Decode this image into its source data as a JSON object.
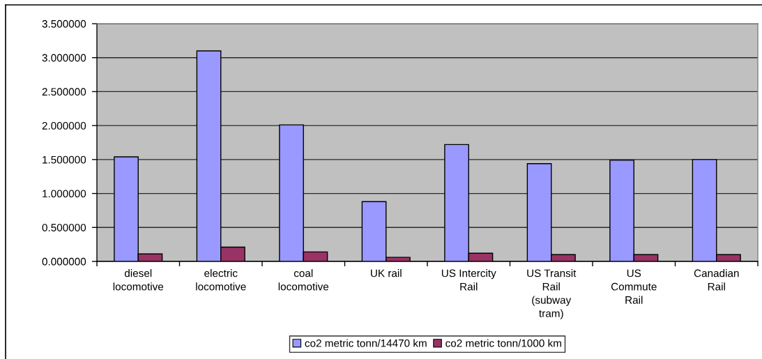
{
  "chart_data": {
    "type": "bar",
    "categories": [
      "diesel\nlocomotive",
      "electric\nlocomotive",
      "coal\nlocomotive",
      "UK rail",
      "US Intercity\nRail",
      "US Transit\nRail\n(subway\ntram)",
      "US\nCommute\nRail",
      "Canadian\nRail"
    ],
    "series": [
      {
        "name": "co2 metric tonn/14470 km",
        "color": "#9999ff",
        "values": [
          1.54,
          3.1,
          2.01,
          0.88,
          1.72,
          1.44,
          1.49,
          1.5
        ]
      },
      {
        "name": "co2 metric tonn/1000 km",
        "color": "#993366",
        "values": [
          0.11,
          0.21,
          0.14,
          0.06,
          0.12,
          0.1,
          0.1,
          0.1
        ]
      }
    ],
    "ylim": [
      0,
      3.5
    ],
    "yticks": [
      {
        "value": 0,
        "label": "0.000000"
      },
      {
        "value": 0.5,
        "label": "0.500000"
      },
      {
        "value": 1,
        "label": "1.000000"
      },
      {
        "value": 1.5,
        "label": "1.500000"
      },
      {
        "value": 2,
        "label": "2.000000"
      },
      {
        "value": 2.5,
        "label": "2.500000"
      },
      {
        "value": 3,
        "label": "3.000000"
      },
      {
        "value": 3.5,
        "label": "3.500000"
      }
    ],
    "grid": "y",
    "legend": "bottom"
  }
}
